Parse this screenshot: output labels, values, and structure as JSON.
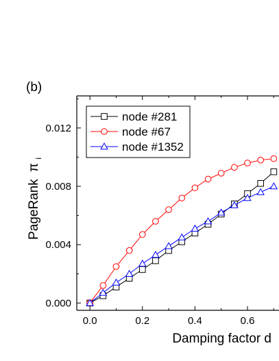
{
  "chart_data": {
    "type": "line",
    "panel_label": "(b)",
    "title": "",
    "xlabel": "Damping factor d",
    "ylabel": "PageRank",
    "ylabel_symbol": "π",
    "ylabel_subscript": "i",
    "xlim": [
      -0.05,
      0.72
    ],
    "ylim": [
      -0.0005,
      0.0142
    ],
    "x_ticks": [
      {
        "value": 0.0,
        "label": "0.0"
      },
      {
        "value": 0.2,
        "label": "0.2"
      },
      {
        "value": 0.4,
        "label": "0.4"
      },
      {
        "value": 0.6,
        "label": "0.6"
      }
    ],
    "y_ticks": [
      {
        "value": 0.0,
        "label": "0.000"
      },
      {
        "value": 0.004,
        "label": "0.004"
      },
      {
        "value": 0.008,
        "label": "0.008"
      },
      {
        "value": 0.012,
        "label": "0.012"
      }
    ],
    "grid": false,
    "legend_position": "top-left",
    "x": [
      0.0,
      0.05,
      0.1,
      0.15,
      0.2,
      0.25,
      0.3,
      0.35,
      0.4,
      0.45,
      0.5,
      0.55,
      0.6,
      0.65,
      0.7
    ],
    "series": [
      {
        "name": "node #281",
        "marker": "square",
        "color": "#000000",
        "values": [
          0.0,
          0.0005,
          0.0011,
          0.0017,
          0.0023,
          0.0029,
          0.0036,
          0.0042,
          0.0048,
          0.0054,
          0.0061,
          0.0068,
          0.0075,
          0.0082,
          0.009
        ]
      },
      {
        "name": "node #67",
        "marker": "circle",
        "color": "#ff0000",
        "values": [
          0.0,
          0.0012,
          0.0025,
          0.0036,
          0.0047,
          0.0056,
          0.0064,
          0.0072,
          0.0079,
          0.0085,
          0.0089,
          0.0093,
          0.0096,
          0.0098,
          0.0099
        ]
      },
      {
        "name": "node #1352",
        "marker": "triangle",
        "color": "#0000ff",
        "values": [
          0.0,
          0.0007,
          0.0014,
          0.002,
          0.0027,
          0.0033,
          0.0039,
          0.0045,
          0.0051,
          0.0056,
          0.0062,
          0.0067,
          0.0072,
          0.0076,
          0.008
        ]
      }
    ]
  }
}
